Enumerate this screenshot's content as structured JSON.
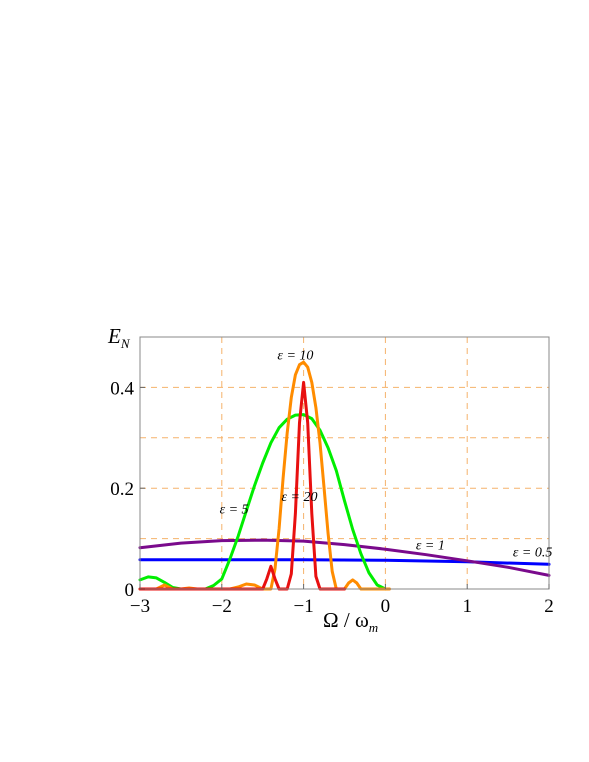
{
  "chart_data": {
    "type": "line",
    "xlabel": "Ω / ω_m",
    "ylabel": "E_N",
    "xlim": [
      -3,
      2
    ],
    "ylim": [
      0,
      0.5
    ],
    "x_ticks": [
      {
        "value": -3,
        "label": "−3"
      },
      {
        "value": -2,
        "label": "−2"
      },
      {
        "value": -1,
        "label": "−1"
      },
      {
        "value": 0,
        "label": "0"
      },
      {
        "value": 1,
        "label": "1"
      },
      {
        "value": 2,
        "label": "2"
      }
    ],
    "y_ticks": [
      {
        "value": 0,
        "label": "0"
      },
      {
        "value": 0.2,
        "label": "0.2"
      },
      {
        "value": 0.4,
        "label": "0.4"
      }
    ],
    "grid": {
      "on": true,
      "style": "dashed",
      "color": "#f5b26b",
      "x": [
        -2,
        -1,
        0,
        1
      ],
      "y": [
        0.1,
        0.2,
        0.3,
        0.4
      ]
    },
    "legend": "none",
    "series": [
      {
        "name": "ε = 0.5",
        "color": "#0000ff",
        "x": [
          -3,
          -2,
          -1,
          0,
          1,
          2
        ],
        "y": [
          0.058,
          0.058,
          0.058,
          0.057,
          0.054,
          0.049
        ]
      },
      {
        "name": "ε = 1",
        "color": "#7a0a8c",
        "x": [
          -3,
          -2.5,
          -2,
          -1.5,
          -1,
          -0.5,
          0,
          0.5,
          1,
          1.5,
          2
        ],
        "y": [
          0.082,
          0.091,
          0.096,
          0.097,
          0.095,
          0.088,
          0.079,
          0.068,
          0.056,
          0.043,
          0.027
        ]
      },
      {
        "name": "ε = 5",
        "color": "#00ee00",
        "x": [
          -3,
          -2.9,
          -2.8,
          -2.7,
          -2.6,
          -2.5,
          -2.4,
          -2.3,
          -2.2,
          -2.1,
          -2.0,
          -1.9,
          -1.8,
          -1.7,
          -1.6,
          -1.5,
          -1.4,
          -1.3,
          -1.2,
          -1.1,
          -1.0,
          -0.9,
          -0.8,
          -0.7,
          -0.6,
          -0.5,
          -0.4,
          -0.3,
          -0.2,
          -0.1,
          0.0
        ],
        "y": [
          0.018,
          0.024,
          0.022,
          0.013,
          0.003,
          0.0,
          0.0,
          0.0,
          0.0,
          0.007,
          0.02,
          0.06,
          0.105,
          0.155,
          0.205,
          0.25,
          0.29,
          0.32,
          0.337,
          0.345,
          0.346,
          0.338,
          0.315,
          0.28,
          0.235,
          0.175,
          0.118,
          0.07,
          0.032,
          0.008,
          0.0
        ]
      },
      {
        "name": "ε = 10",
        "color": "#ff8c00",
        "x": [
          -3,
          -2.9,
          -2.8,
          -2.7,
          -2.6,
          -2.5,
          -2.4,
          -2.3,
          -2.2,
          -2.1,
          -2.0,
          -1.9,
          -1.8,
          -1.7,
          -1.6,
          -1.5,
          -1.4,
          -1.35,
          -1.3,
          -1.25,
          -1.2,
          -1.15,
          -1.1,
          -1.05,
          -1.0,
          -0.95,
          -0.9,
          -0.85,
          -0.8,
          -0.75,
          -0.7,
          -0.65,
          -0.6,
          -0.55,
          -0.5,
          -0.45,
          -0.4,
          -0.35,
          -0.3,
          -0.2,
          -0.1,
          0.0,
          0.05
        ],
        "y": [
          0.0,
          0.0,
          0.0,
          0.008,
          0.0,
          0.0,
          0.002,
          0.0,
          0.0,
          0.0,
          0.0,
          0.0,
          0.004,
          0.01,
          0.008,
          0.0,
          0.0,
          0.04,
          0.12,
          0.22,
          0.31,
          0.38,
          0.425,
          0.445,
          0.45,
          0.44,
          0.41,
          0.36,
          0.29,
          0.2,
          0.11,
          0.035,
          0.0,
          0.0,
          0.0,
          0.012,
          0.018,
          0.012,
          0.0,
          0.0,
          0.0,
          0.0,
          0.0
        ]
      },
      {
        "name": "ε = 20",
        "color": "#e81010",
        "x": [
          -3,
          -2.9,
          -2.8,
          -2.7,
          -2.6,
          -2.5,
          -2.4,
          -2.3,
          -2.2,
          -2.1,
          -2.0,
          -1.9,
          -1.8,
          -1.7,
          -1.6,
          -1.5,
          -1.45,
          -1.4,
          -1.35,
          -1.3,
          -1.25,
          -1.2,
          -1.15,
          -1.1,
          -1.05,
          -1.0,
          -0.95,
          -0.9,
          -0.85,
          -0.8,
          -0.75,
          -0.7,
          -0.65,
          -0.6,
          -0.55,
          -0.5
        ],
        "y": [
          0.0,
          0.0,
          0.0,
          0.0,
          0.0,
          0.0,
          0.0,
          0.0,
          0.0,
          0.0,
          0.0,
          0.0,
          0.0,
          0.0,
          0.0,
          0.0,
          0.02,
          0.045,
          0.02,
          0.0,
          0.0,
          0.0,
          0.03,
          0.15,
          0.33,
          0.41,
          0.33,
          0.15,
          0.025,
          0.0,
          0.0,
          0.0,
          0.0,
          0.0,
          0.0,
          0.0
        ]
      }
    ],
    "annotations": [
      {
        "text": "ε = 10",
        "x": -1.1,
        "y": 0.455
      },
      {
        "text": "ε = 5",
        "x": -1.85,
        "y": 0.15
      },
      {
        "text": "ε = 20",
        "x": -1.05,
        "y": 0.175
      },
      {
        "text": "ε = 1",
        "x": 0.55,
        "y": 0.078
      },
      {
        "text": "ε = 0.5",
        "x": 1.8,
        "y": 0.064
      }
    ]
  }
}
